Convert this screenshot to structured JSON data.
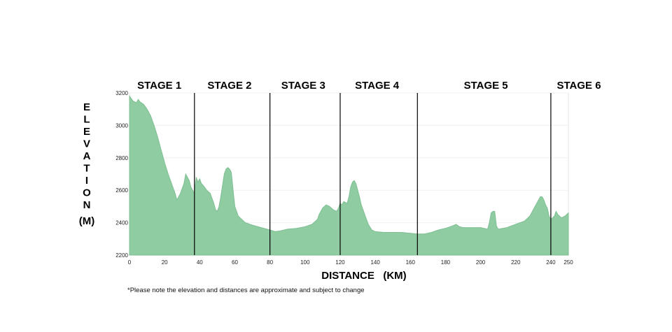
{
  "chart_data": {
    "type": "area",
    "xlabel": "DISTANCE   (KM)",
    "ylabel": "ELEVATION (M)",
    "ylabel_letters": [
      "E",
      "L",
      "E",
      "V",
      "A",
      "T",
      "I",
      "O",
      "N"
    ],
    "ylabel_unit": "(M)",
    "xlim": [
      0,
      250
    ],
    "ylim": [
      2200,
      3200
    ],
    "xticks": [
      0,
      20,
      40,
      60,
      80,
      100,
      120,
      140,
      160,
      180,
      200,
      220,
      240,
      250
    ],
    "yticks": [
      2200,
      2400,
      2600,
      2800,
      3000,
      3200
    ],
    "fill_color": "#8fcca1",
    "stage_boundaries": [
      37,
      80,
      120,
      164,
      240
    ],
    "stages": [
      {
        "name": "STAGE 1",
        "center_km": 17
      },
      {
        "name": "STAGE 2",
        "center_km": 57
      },
      {
        "name": "STAGE 3",
        "center_km": 99
      },
      {
        "name": "STAGE 4",
        "center_km": 141
      },
      {
        "name": "STAGE 5",
        "center_km": 203
      },
      {
        "name": "STAGE 6",
        "center_km": 256
      }
    ],
    "x": [
      0,
      2,
      4,
      5,
      6,
      8,
      10,
      12,
      14,
      16,
      18,
      20,
      22,
      24,
      26,
      27,
      29,
      31,
      32,
      34,
      35,
      36,
      37,
      38,
      39,
      40,
      41,
      42,
      44,
      46,
      48,
      49,
      50,
      51,
      52,
      53,
      54,
      55,
      56,
      57,
      58,
      59,
      60,
      62,
      64,
      66,
      70,
      75,
      80,
      83,
      86,
      90,
      95,
      100,
      104,
      107,
      108,
      110,
      112,
      114,
      116,
      118,
      119,
      120,
      121,
      122,
      124,
      125,
      126,
      127,
      128,
      129,
      130,
      131,
      132,
      134,
      136,
      138,
      140,
      145,
      150,
      155,
      160,
      164,
      168,
      172,
      176,
      180,
      184,
      186,
      188,
      190,
      195,
      200,
      204,
      205,
      206,
      207,
      208,
      209,
      210,
      215,
      220,
      225,
      228,
      230,
      232,
      233,
      234,
      235,
      236,
      237,
      238,
      239,
      240,
      242,
      243,
      244,
      246,
      248,
      250
    ],
    "y": [
      3180,
      3150,
      3140,
      3160,
      3145,
      3130,
      3100,
      3060,
      3000,
      2930,
      2850,
      2770,
      2700,
      2640,
      2580,
      2540,
      2580,
      2640,
      2700,
      2660,
      2620,
      2600,
      2580,
      2680,
      2650,
      2670,
      2640,
      2630,
      2600,
      2580,
      2520,
      2480,
      2470,
      2500,
      2560,
      2630,
      2700,
      2730,
      2740,
      2730,
      2710,
      2600,
      2500,
      2440,
      2420,
      2400,
      2385,
      2370,
      2355,
      2345,
      2350,
      2360,
      2365,
      2375,
      2390,
      2420,
      2450,
      2490,
      2510,
      2500,
      2480,
      2470,
      2490,
      2520,
      2510,
      2530,
      2520,
      2560,
      2620,
      2650,
      2660,
      2640,
      2600,
      2560,
      2510,
      2450,
      2390,
      2355,
      2345,
      2340,
      2340,
      2340,
      2335,
      2330,
      2330,
      2340,
      2355,
      2365,
      2380,
      2390,
      2375,
      2370,
      2370,
      2370,
      2360,
      2400,
      2460,
      2470,
      2470,
      2380,
      2360,
      2370,
      2390,
      2410,
      2440,
      2480,
      2520,
      2540,
      2560,
      2560,
      2540,
      2510,
      2490,
      2440,
      2420,
      2440,
      2470,
      2450,
      2430,
      2440,
      2460
    ]
  },
  "footnote": "*Please note the elevation and distances are approximate and subject to change"
}
